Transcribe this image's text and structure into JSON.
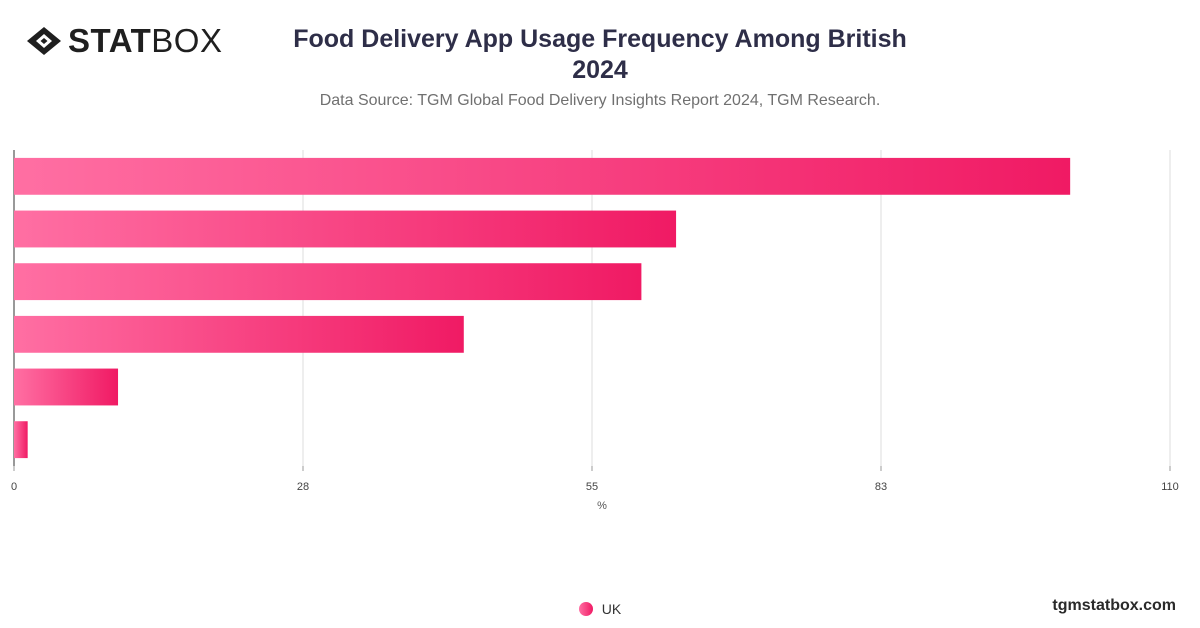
{
  "brand": {
    "logo_bold": "STAT",
    "logo_light": "BOX",
    "watermark": "tgmstatbox.com"
  },
  "header": {
    "title_line1": "Food Delivery App Usage Frequency Among British",
    "title_line2": "2024",
    "subtitle": "Data Source: TGM Global Food Delivery Insights Report 2024, TGM Research."
  },
  "colors": {
    "bar_start": "#ff6fa3",
    "bar_end": "#f01a64",
    "grid": "#dddddd",
    "axis": "#333333"
  },
  "chart_data": {
    "type": "bar",
    "orientation": "horizontal",
    "series": [
      {
        "name": "UK",
        "values": [
          100.5,
          63,
          59.7,
          42.8,
          9.9,
          1.3
        ]
      }
    ],
    "xlim": [
      0,
      110
    ],
    "xticks": [
      "0",
      "28",
      "55",
      "83",
      "110"
    ],
    "xtick_values": [
      0,
      27.5,
      55,
      82.5,
      110
    ],
    "xlabel": "%",
    "ylabel": "",
    "grid": true,
    "legend_position": "bottom-center"
  }
}
